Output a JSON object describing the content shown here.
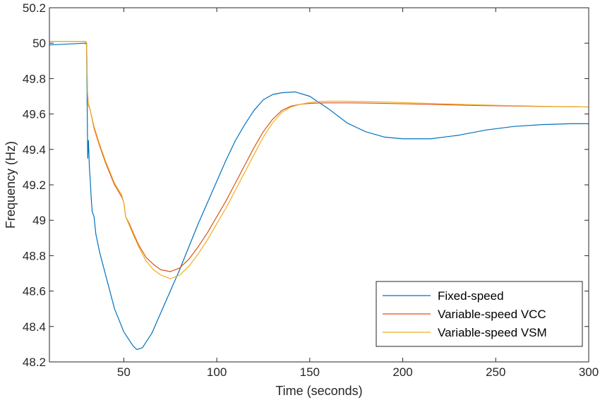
{
  "chart_data": {
    "type": "line",
    "title": "",
    "xlabel": "Time (seconds)",
    "ylabel": "Frequency (Hz)",
    "xlim": [
      10,
      300
    ],
    "ylim": [
      48.2,
      50.2
    ],
    "xticks": [
      50,
      100,
      150,
      200,
      250,
      300
    ],
    "xtick_labels": [
      "50",
      "100",
      "150",
      "200",
      "250",
      "300"
    ],
    "yticks": [
      48.2,
      48.4,
      48.6,
      48.8,
      49,
      49.2,
      49.4,
      49.6,
      49.8,
      50,
      50.2
    ],
    "ytick_labels": [
      "48.2",
      "48.4",
      "48.6",
      "48.8",
      "49",
      "49.2",
      "49.4",
      "49.6",
      "49.8",
      "50",
      "50.2"
    ],
    "grid": false,
    "legend_position": "bottom-right",
    "series": [
      {
        "name": "Fixed-speed",
        "color": "#0072BD",
        "x": [
          10,
          29.5,
          30,
          30.3,
          30.6,
          31,
          31.5,
          32,
          32.5,
          33,
          34,
          35,
          37,
          40,
          45,
          50,
          55,
          57,
          60,
          65,
          70,
          75,
          80,
          85,
          90,
          95,
          100,
          105,
          110,
          115,
          120,
          125,
          130,
          135,
          142,
          150,
          160,
          170,
          180,
          190,
          200,
          215,
          230,
          245,
          260,
          275,
          290,
          300
        ],
        "y": [
          49.99,
          50.0,
          49.99,
          49.65,
          49.35,
          49.45,
          49.3,
          49.22,
          49.12,
          49.05,
          49.02,
          48.92,
          48.82,
          48.7,
          48.5,
          48.37,
          48.29,
          48.27,
          48.28,
          48.36,
          48.48,
          48.6,
          48.72,
          48.85,
          48.98,
          49.1,
          49.22,
          49.34,
          49.45,
          49.54,
          49.62,
          49.68,
          49.71,
          49.72,
          49.725,
          49.7,
          49.63,
          49.55,
          49.5,
          49.47,
          49.46,
          49.46,
          49.48,
          49.51,
          49.53,
          49.54,
          49.545,
          49.545
        ]
      },
      {
        "name": "Variable-speed VCC",
        "color": "#D95319",
        "x": [
          10,
          29.5,
          30,
          30.5,
          31,
          32,
          34,
          37,
          40,
          45,
          49,
          50,
          51,
          53,
          55,
          58,
          62,
          66,
          70,
          75,
          80,
          85,
          90,
          95,
          100,
          105,
          110,
          115,
          120,
          125,
          130,
          135,
          140,
          145,
          150,
          155,
          160,
          170,
          180,
          200,
          220,
          240,
          260,
          280,
          300
        ],
        "y": [
          50.01,
          50.01,
          50.0,
          49.72,
          49.65,
          49.62,
          49.52,
          49.42,
          49.33,
          49.2,
          49.13,
          49.1,
          49.02,
          48.98,
          48.93,
          48.86,
          48.79,
          48.75,
          48.72,
          48.71,
          48.73,
          48.78,
          48.85,
          48.93,
          49.02,
          49.11,
          49.21,
          49.31,
          49.41,
          49.5,
          49.57,
          49.62,
          49.645,
          49.655,
          49.66,
          49.662,
          49.663,
          49.663,
          49.662,
          49.658,
          49.653,
          49.648,
          49.645,
          49.642,
          49.64
        ]
      },
      {
        "name": "Variable-speed VSM",
        "color": "#EDB120",
        "x": [
          10,
          29.5,
          30,
          30.5,
          31,
          32,
          34,
          37,
          40,
          45,
          49,
          50,
          51,
          53,
          55,
          58,
          62,
          66,
          70,
          75,
          80,
          85,
          90,
          95,
          100,
          105,
          110,
          115,
          120,
          125,
          130,
          135,
          140,
          145,
          150,
          155,
          160,
          170,
          180,
          200,
          220,
          240,
          260,
          280,
          300
        ],
        "y": [
          50.01,
          50.01,
          50.0,
          49.7,
          49.66,
          49.62,
          49.53,
          49.43,
          49.34,
          49.21,
          49.14,
          49.1,
          49.02,
          48.97,
          48.92,
          48.85,
          48.77,
          48.72,
          48.69,
          48.67,
          48.69,
          48.74,
          48.81,
          48.89,
          48.98,
          49.07,
          49.17,
          49.27,
          49.37,
          49.47,
          49.55,
          49.61,
          49.64,
          49.655,
          49.665,
          49.67,
          49.672,
          49.672,
          49.67,
          49.665,
          49.658,
          49.652,
          49.647,
          49.643,
          49.64
        ]
      }
    ]
  }
}
